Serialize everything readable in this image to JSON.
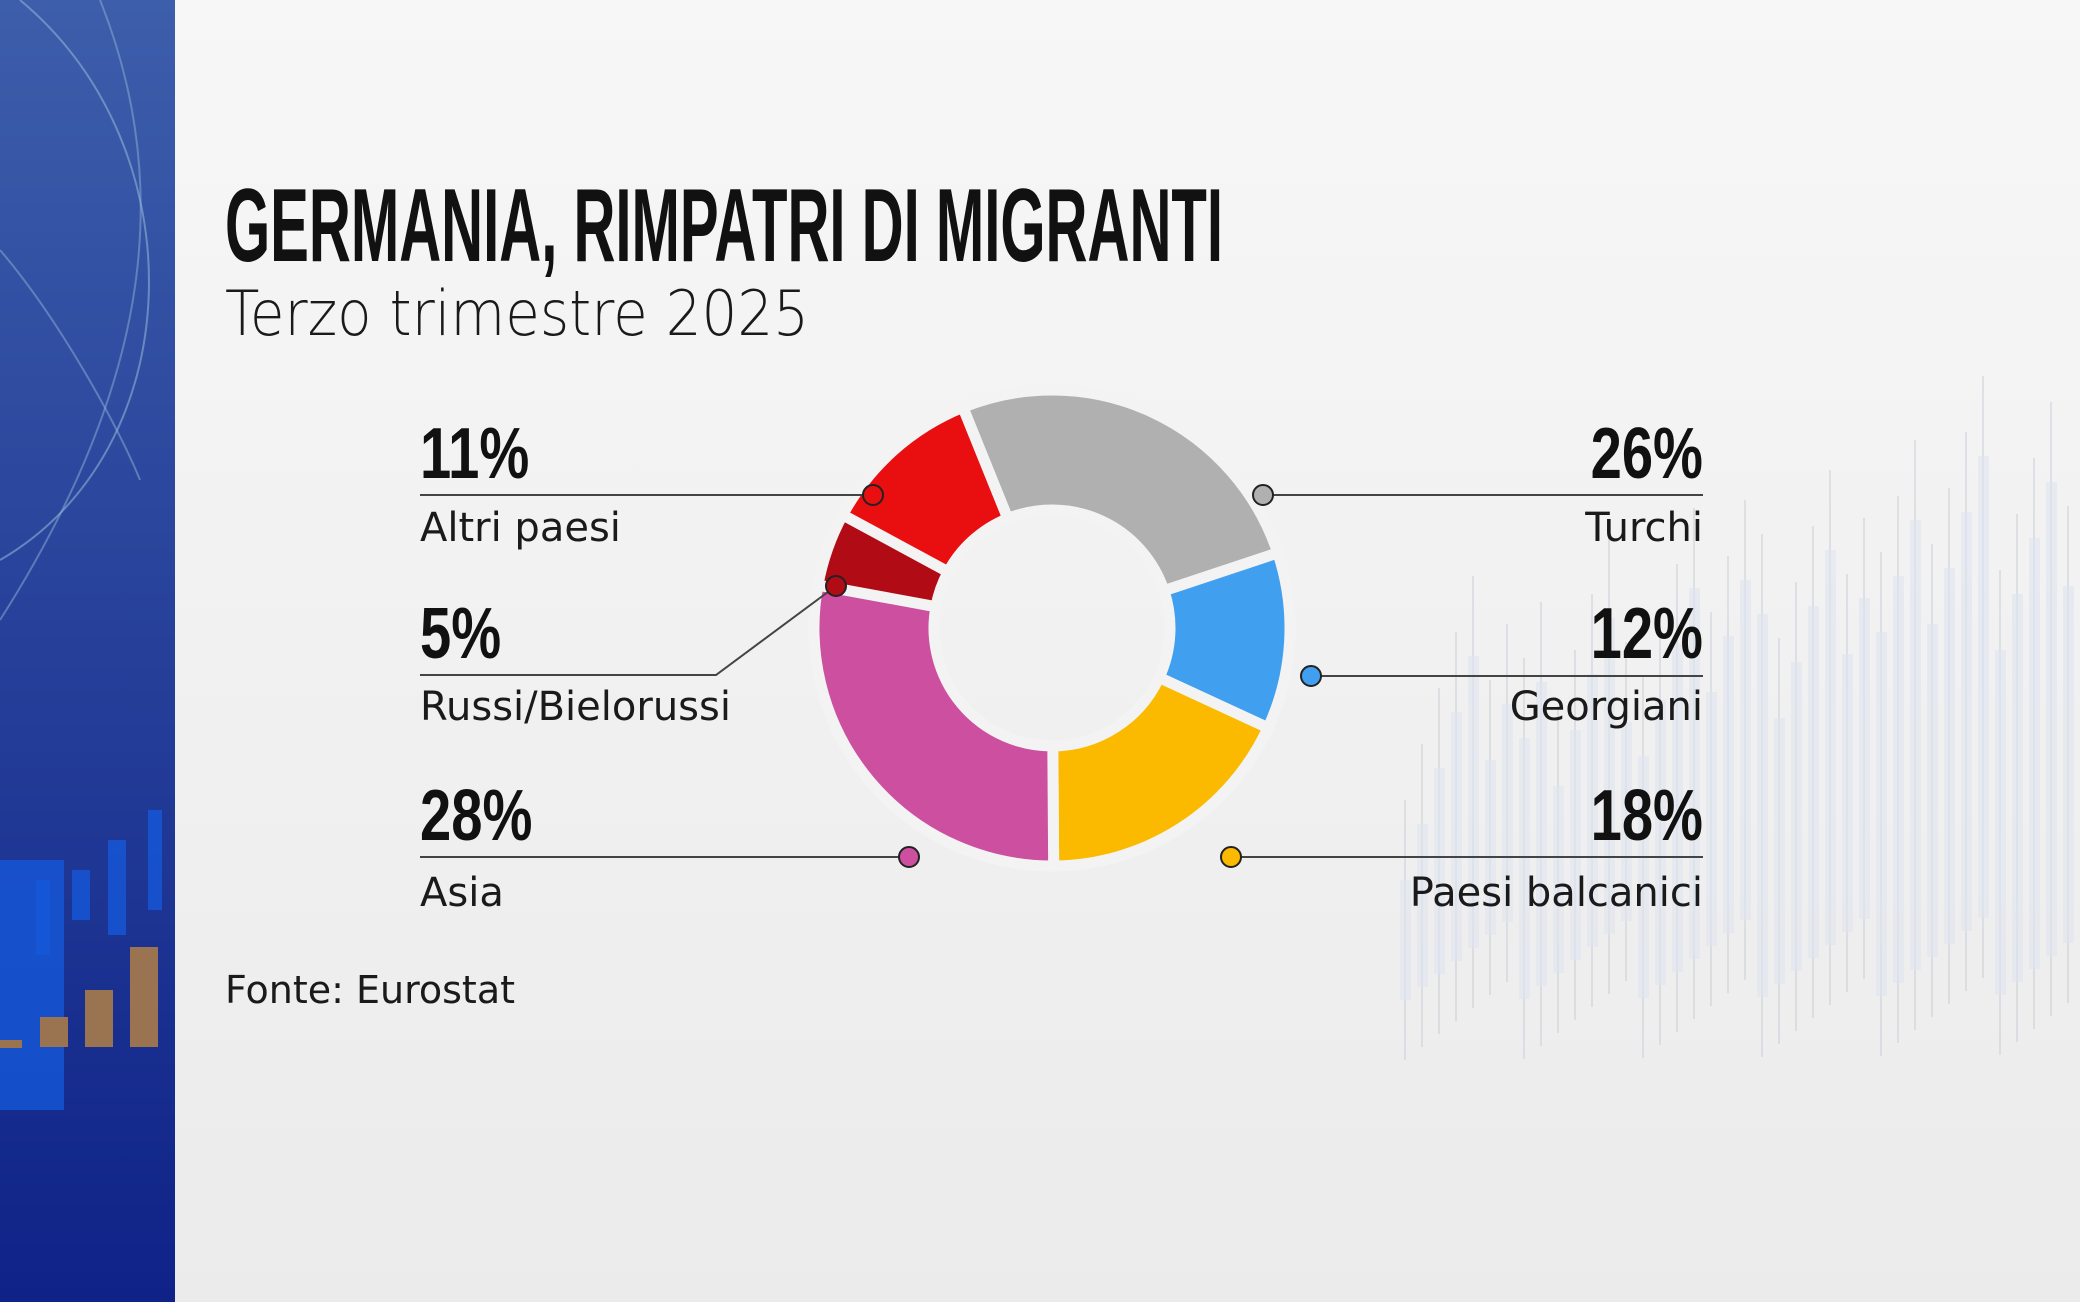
{
  "chart_data": {
    "type": "pie",
    "variant": "donut",
    "title": "GERMANIA, RIMPATRI DI MIGRANTI",
    "subtitle": "Terzo trimestre 2025",
    "source": "Fonte: Eurostat",
    "unit": "%",
    "slices": [
      {
        "label": "Turchi",
        "value": 26,
        "display": "26%",
        "color": "#b0b0b0",
        "side": "right"
      },
      {
        "label": "Georgiani",
        "value": 12,
        "display": "12%",
        "color": "#419ff0",
        "side": "right"
      },
      {
        "label": "Paesi balcanici",
        "value": 18,
        "display": "18%",
        "color": "#fbb900",
        "side": "right"
      },
      {
        "label": "Asia",
        "value": 28,
        "display": "28%",
        "color": "#cd4f9f",
        "side": "left"
      },
      {
        "label": "Russi/Bielorussi",
        "value": 5,
        "display": "5%",
        "color": "#b10c15",
        "side": "left"
      },
      {
        "label": "Altri paesi",
        "value": 11,
        "display": "11%",
        "color": "#e90e10",
        "side": "left"
      }
    ]
  },
  "colors": {
    "band_top": "#3a5aa8",
    "band_bottom": "#10238a",
    "background": "#f1f1f1"
  }
}
